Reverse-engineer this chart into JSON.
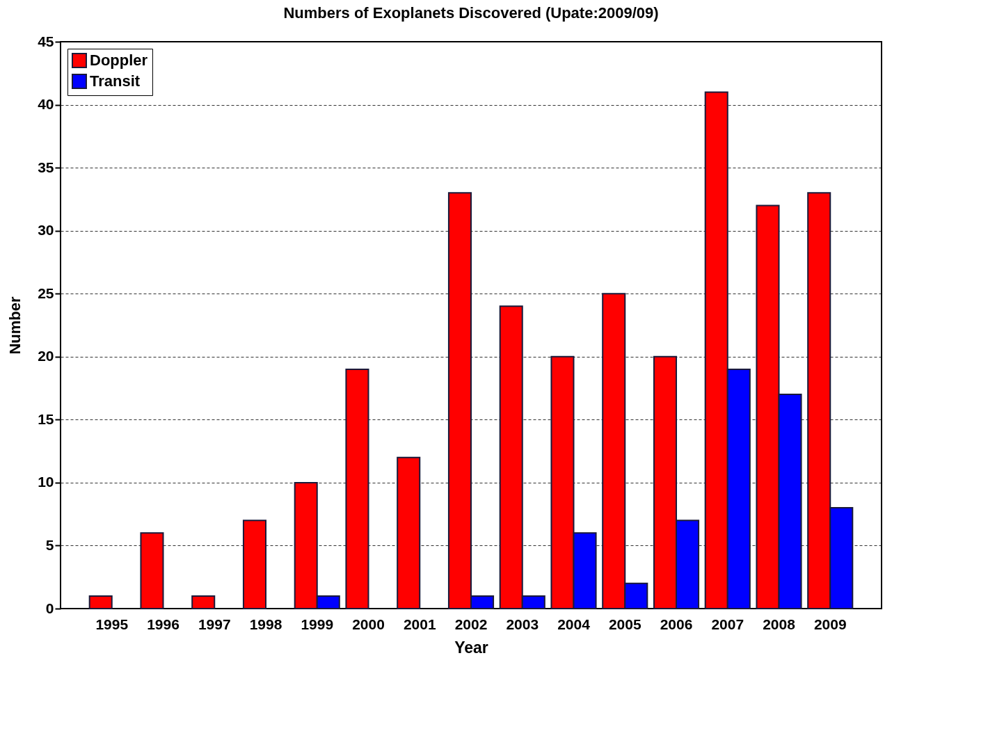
{
  "chart_data": {
    "type": "bar",
    "title": "Numbers of Exoplanets Discovered (Upate:2009/09)",
    "xlabel": "Year",
    "ylabel": "Number",
    "categories": [
      "1995",
      "1996",
      "1997",
      "1998",
      "1999",
      "2000",
      "2001",
      "2002",
      "2003",
      "2004",
      "2005",
      "2006",
      "2007",
      "2008",
      "2009"
    ],
    "series": [
      {
        "name": "Doppler",
        "color": "#ff0000",
        "values": [
          1,
          6,
          1,
          7,
          10,
          19,
          12,
          33,
          24,
          20,
          25,
          20,
          41,
          32,
          33
        ]
      },
      {
        "name": "Transit",
        "color": "#0000ff",
        "values": [
          0,
          0,
          0,
          0,
          1,
          0,
          0,
          1,
          1,
          6,
          2,
          7,
          19,
          17,
          8
        ]
      }
    ],
    "ylim": [
      0,
      45
    ],
    "yticks": [
      0,
      5,
      10,
      15,
      20,
      25,
      30,
      35,
      40,
      45
    ],
    "grid": "y",
    "legend": "top left"
  }
}
